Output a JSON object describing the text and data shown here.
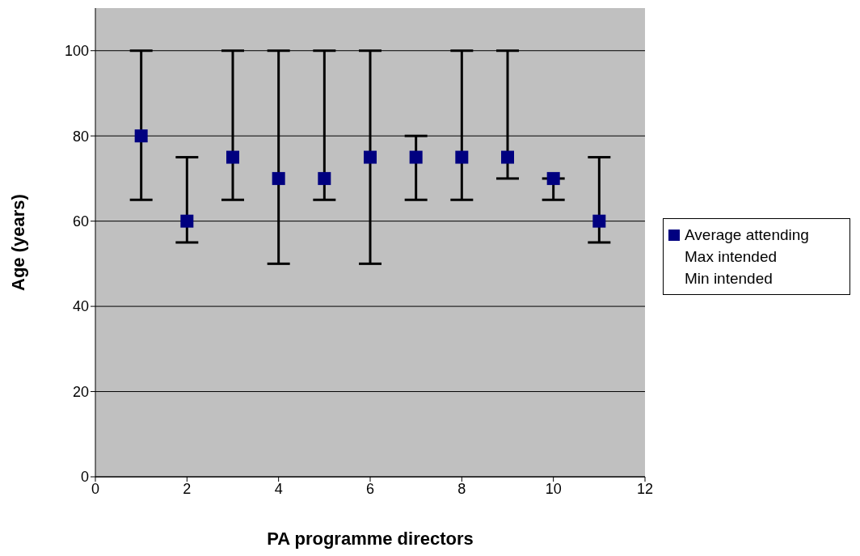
{
  "chart_data": {
    "type": "scatter",
    "xlabel": "PA programme directors",
    "ylabel": "Age (years)",
    "x": [
      1,
      2,
      3,
      4,
      5,
      6,
      7,
      8,
      9,
      10,
      11
    ],
    "series": [
      {
        "name": "Average attending",
        "color": "#000080",
        "marker": "square",
        "values": [
          80,
          60,
          75,
          70,
          70,
          75,
          75,
          75,
          75,
          70,
          60
        ],
        "errors": [
          [
            65,
            100
          ],
          [
            55,
            75
          ],
          [
            65,
            100
          ],
          [
            50,
            100
          ],
          [
            65,
            100
          ],
          [
            50,
            100
          ],
          [
            65,
            80
          ],
          [
            65,
            100
          ],
          [
            70,
            100
          ],
          [
            65,
            70
          ],
          [
            55,
            75
          ]
        ]
      }
    ],
    "annotations": [
      "Max intended",
      "Min intended"
    ],
    "xlim": [
      0,
      12
    ],
    "xticks": [
      0,
      2,
      4,
      6,
      8,
      10,
      12
    ],
    "ylim": [
      0,
      110
    ],
    "yticks": [
      0,
      20,
      40,
      60,
      80,
      100
    ],
    "grid": "y",
    "legend": "right"
  }
}
